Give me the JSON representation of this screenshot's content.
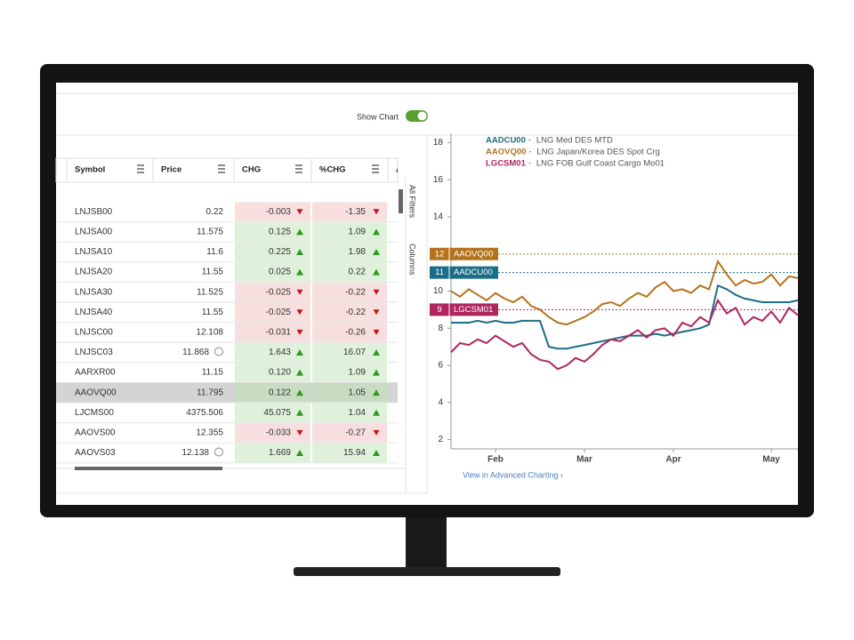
{
  "toolbar": {
    "show_chart": "Show Chart"
  },
  "table": {
    "columns": [
      "Symbol",
      "Price",
      "CHG",
      "%CHG",
      "As"
    ],
    "rows": [
      [
        "LNJSB00",
        "0.22",
        "-0.003",
        "-1.35"
      ],
      [
        "LNJSA00",
        "11.575",
        "0.125",
        "1.09"
      ],
      [
        "LNJSA10",
        "11.6",
        "0.225",
        "1.98"
      ],
      [
        "LNJSA20",
        "11.55",
        "0.025",
        "0.22"
      ],
      [
        "LNJSA30",
        "11.525",
        "-0.025",
        "-0.22"
      ],
      [
        "LNJSA40",
        "11.55",
        "-0.025",
        "-0.22"
      ],
      [
        "LNJSC00",
        "12.108",
        "-0.031",
        "-0.26"
      ],
      [
        "LNJSC03",
        "11.868",
        "1.643",
        "16.07"
      ],
      [
        "AARXR00",
        "11.15",
        "0.120",
        "1.09"
      ],
      [
        "AAOVQ00",
        "11.795",
        "0.122",
        "1.05"
      ],
      [
        "LJCMS00",
        "4375.506",
        "45.075",
        "1.04"
      ],
      [
        "AAOVS00",
        "12.355",
        "-0.033",
        "-0.27"
      ],
      [
        "AAOVS03",
        "12.138",
        "1.669",
        "15.94"
      ]
    ],
    "selected_row": 9,
    "history_rows": [
      7,
      12
    ]
  },
  "side_panel": {
    "filters": "All Filters",
    "columns": "Columns"
  },
  "chart_data": {
    "type": "line",
    "categories": [
      null,
      null,
      null,
      null,
      null,
      "Feb",
      null,
      null,
      null,
      null,
      null,
      null,
      null,
      null,
      null,
      "Mar",
      null,
      null,
      null,
      null,
      null,
      null,
      null,
      null,
      null,
      "Apr",
      null,
      null,
      null,
      null,
      null,
      null,
      null,
      null,
      null,
      null,
      "May",
      null,
      null,
      null
    ],
    "ylim": [
      1.5,
      18.5
    ],
    "yticks": [
      2,
      4,
      6,
      8,
      10,
      12,
      14,
      16,
      18
    ],
    "series": [
      {
        "name": "AADCU00",
        "description": "LNG Med DES MTD",
        "color": "#1b6e87",
        "tag": 11,
        "values": [
          8.3,
          8.3,
          8.3,
          8.4,
          8.3,
          8.4,
          8.3,
          8.3,
          8.4,
          8.4,
          8.4,
          7.0,
          6.9,
          6.9,
          7.0,
          7.1,
          7.2,
          7.3,
          7.4,
          7.5,
          7.6,
          7.6,
          7.6,
          7.7,
          7.6,
          7.7,
          7.8,
          7.9,
          8.0,
          8.2,
          10.3,
          10.1,
          9.8,
          9.6,
          9.5,
          9.4,
          9.4,
          9.4,
          9.4,
          9.5
        ]
      },
      {
        "name": "AAOVQ00",
        "description": "LNG Japan/Korea DES Spot Crg",
        "color": "#b5731b",
        "tag": 12,
        "values": [
          10.0,
          9.7,
          10.1,
          9.8,
          9.5,
          9.9,
          9.6,
          9.4,
          9.7,
          9.2,
          9.0,
          8.6,
          8.3,
          8.2,
          8.4,
          8.6,
          8.9,
          9.3,
          9.4,
          9.2,
          9.6,
          9.9,
          9.7,
          10.2,
          10.5,
          10.0,
          10.1,
          9.9,
          10.3,
          10.1,
          11.6,
          10.9,
          10.3,
          10.6,
          10.4,
          10.5,
          10.9,
          10.3,
          10.8,
          10.7
        ]
      },
      {
        "name": "LGCSM01",
        "description": "LNG FOB Gulf Coast Cargo Mo01",
        "color": "#b0255e",
        "tag": 9,
        "values": [
          6.7,
          7.2,
          7.1,
          7.4,
          7.2,
          7.6,
          7.3,
          7.0,
          7.2,
          6.6,
          6.3,
          6.2,
          5.8,
          6.0,
          6.4,
          6.2,
          6.6,
          7.1,
          7.4,
          7.3,
          7.6,
          7.9,
          7.5,
          7.9,
          8.0,
          7.6,
          8.3,
          8.1,
          8.6,
          8.3,
          9.5,
          8.8,
          9.1,
          8.2,
          8.6,
          8.4,
          8.9,
          8.3,
          9.1,
          8.7
        ]
      }
    ],
    "link": "View in Advanced Charting ›"
  }
}
